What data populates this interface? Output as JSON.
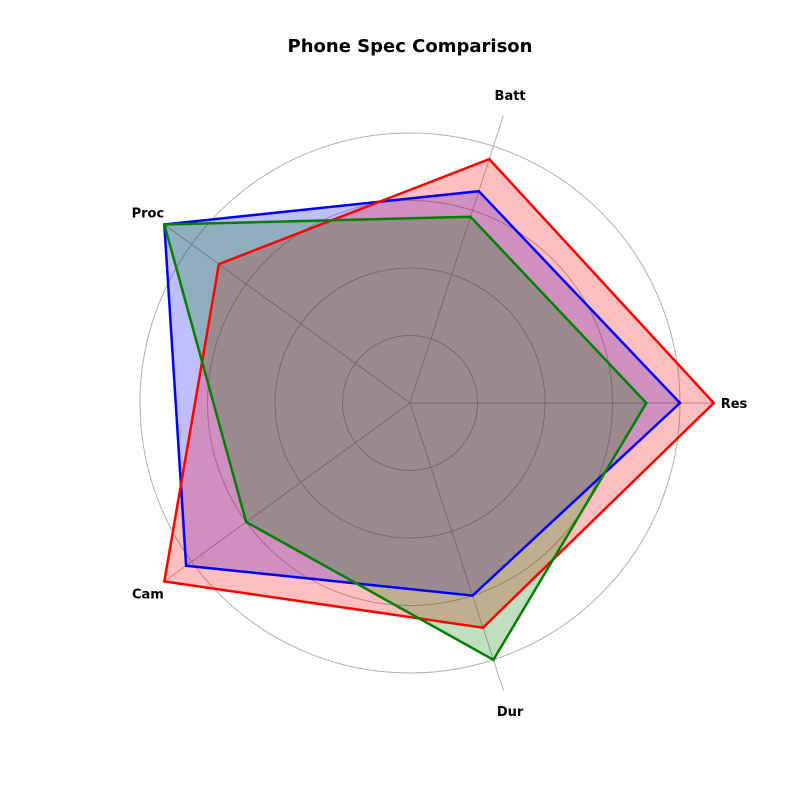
{
  "chart_data": {
    "type": "radar",
    "title": "Phone Spec Comparison",
    "axes": [
      "Res",
      "Batt",
      "Proc",
      "Cam",
      "Dur"
    ],
    "rlim": [
      0,
      4
    ],
    "rgrid": [
      1,
      2,
      3,
      4
    ],
    "grid": true,
    "legend": "none",
    "series": [
      {
        "color": "#0000ff",
        "fill": "#0000ff",
        "fill_alpha": 0.25,
        "values": [
          4.0,
          3.3,
          4.5,
          4.1,
          3.0
        ]
      },
      {
        "color": "#ff0000",
        "fill": "#ff0000",
        "fill_alpha": 0.25,
        "values": [
          4.5,
          3.8,
          3.5,
          4.5,
          3.5
        ]
      },
      {
        "color": "#008000",
        "fill": "#008000",
        "fill_alpha": 0.25,
        "values": [
          3.5,
          2.9,
          4.5,
          3.0,
          4.0
        ]
      }
    ]
  }
}
